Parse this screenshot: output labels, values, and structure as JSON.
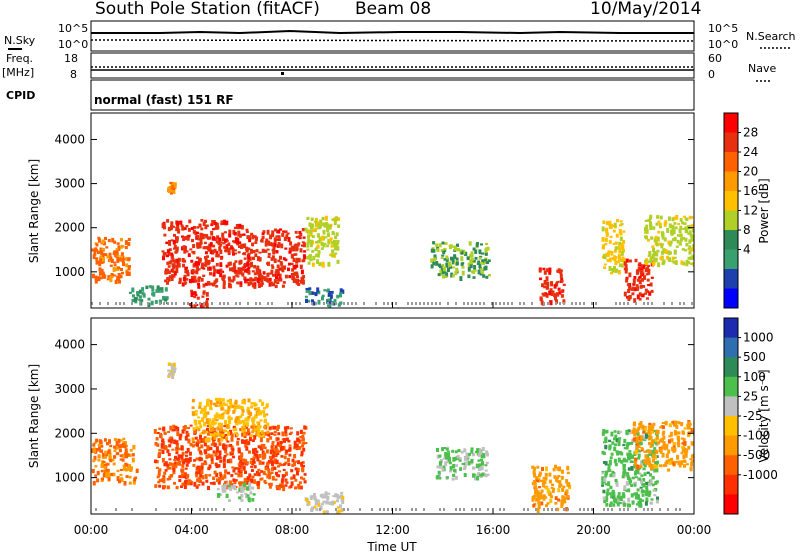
{
  "header": {
    "station": "South Pole Station (fitACF)",
    "beam": "Beam 08",
    "date": "10/May/2014"
  },
  "sky_panel": {
    "left_label": "N.Sky",
    "right_label": "N.Search",
    "left_ticks": [
      "10^5",
      "10^0"
    ],
    "right_ticks": [
      "10^5",
      "10^0"
    ]
  },
  "freq_panel": {
    "left_label_1": "Freq.",
    "left_label_2": "[MHz]",
    "right_label": "Nave",
    "left_ticks": [
      "18",
      "8"
    ],
    "right_ticks": [
      "60",
      "0"
    ]
  },
  "cpid_panel": {
    "label": "CPID",
    "program": "normal (fast) 151 RF"
  },
  "power_panel": {
    "ylabel": "Slant Range [km]",
    "yticks": [
      "4000",
      "3000",
      "2000",
      "1000"
    ],
    "colorbar_label": "Power [dB]",
    "colorbar_ticks": [
      "28",
      "24",
      "20",
      "16",
      "12",
      "8",
      "4"
    ],
    "colorbar_colors": [
      "#ff0000",
      "#e83010",
      "#ff6000",
      "#ff9a00",
      "#ffc000",
      "#b0d028",
      "#2e8b57",
      "#3aa070",
      "#1e3fae",
      "#0000ff"
    ]
  },
  "velocity_panel": {
    "ylabel": "Slant Range [km]",
    "yticks": [
      "4000",
      "3000",
      "2000",
      "1000"
    ],
    "colorbar_label": "Velocity [m s⁻¹]",
    "colorbar_ticks": [
      "1000",
      "500",
      "100",
      "25",
      "-25",
      "-100",
      "-500",
      "-1000"
    ],
    "colorbar_colors": [
      "#1c2bb0",
      "#2f6fb0",
      "#2e8b57",
      "#4cbf4c",
      "#c0c0c0",
      "#ffc000",
      "#ff9a00",
      "#ff6000",
      "#ff3000",
      "#ff0000"
    ]
  },
  "xaxis": {
    "label": "Time UT",
    "ticks": [
      "00:00",
      "04:00",
      "08:00",
      "12:00",
      "16:00",
      "20:00",
      "00:00"
    ]
  },
  "chart_data": [
    {
      "type": "heatmap",
      "title": "South Pole Station (fitACF) Beam 08 10/May/2014",
      "quantity": "Power [dB]",
      "xlabel": "Time UT",
      "ylabel": "Slant Range [km]",
      "xlim_hours": [
        0,
        24
      ],
      "ylim_km": [
        180,
        4600
      ],
      "zlim": [
        0,
        30
      ],
      "grid": false,
      "patches": [
        {
          "t0": 0.0,
          "t1": 1.5,
          "r0": 800,
          "r1": 1800,
          "z": 22
        },
        {
          "t0": 1.5,
          "t1": 3.0,
          "r0": 300,
          "r1": 700,
          "z": 8
        },
        {
          "t0": 2.8,
          "t1": 6.0,
          "r0": 700,
          "r1": 2200,
          "z": 26
        },
        {
          "t0": 3.0,
          "t1": 3.3,
          "r0": 2850,
          "r1": 3050,
          "z": 20
        },
        {
          "t0": 3.9,
          "t1": 4.6,
          "r0": 180,
          "r1": 600,
          "z": 26
        },
        {
          "t0": 6.0,
          "t1": 8.5,
          "r0": 700,
          "r1": 2000,
          "z": 26
        },
        {
          "t0": 8.5,
          "t1": 9.8,
          "r0": 1200,
          "r1": 2300,
          "z": 14
        },
        {
          "t0": 8.5,
          "t1": 10.0,
          "r0": 250,
          "r1": 650,
          "z": 6
        },
        {
          "t0": 13.5,
          "t1": 15.8,
          "r0": 900,
          "r1": 1700,
          "z": 12
        },
        {
          "t0": 17.8,
          "t1": 18.8,
          "r0": 300,
          "r1": 1100,
          "z": 26
        },
        {
          "t0": 20.3,
          "t1": 21.2,
          "r0": 1000,
          "r1": 2200,
          "z": 16
        },
        {
          "t0": 21.2,
          "t1": 22.3,
          "r0": 400,
          "r1": 1300,
          "z": 26
        },
        {
          "t0": 22.0,
          "t1": 24.0,
          "r0": 1200,
          "r1": 2300,
          "z": 14
        }
      ]
    },
    {
      "type": "heatmap",
      "title": "South Pole Station (fitACF) Beam 08 10/May/2014",
      "quantity": "Velocity [m s-1]",
      "xlabel": "Time UT",
      "ylabel": "Slant Range [km]",
      "xlim_hours": [
        0,
        24
      ],
      "ylim_km": [
        180,
        4600
      ],
      "zlim": [
        -1000,
        1000
      ],
      "grid": false,
      "patches": [
        {
          "t0": 0.0,
          "t1": 1.8,
          "r0": 900,
          "r1": 1900,
          "z": -400
        },
        {
          "t0": 2.5,
          "t1": 8.5,
          "r0": 800,
          "r1": 2200,
          "z": -600
        },
        {
          "t0": 3.0,
          "t1": 3.3,
          "r0": 3300,
          "r1": 3600,
          "z": 10
        },
        {
          "t0": 4.0,
          "t1": 7.0,
          "r0": 1900,
          "r1": 2800,
          "z": -150
        },
        {
          "t0": 5.0,
          "t1": 6.5,
          "r0": 500,
          "r1": 900,
          "z": 150
        },
        {
          "t0": 8.5,
          "t1": 10.0,
          "r0": 250,
          "r1": 700,
          "z": 80
        },
        {
          "t0": 13.7,
          "t1": 15.8,
          "r0": 1000,
          "r1": 1700,
          "z": 200
        },
        {
          "t0": 17.5,
          "t1": 19.0,
          "r0": 300,
          "r1": 1300,
          "z": -300
        },
        {
          "t0": 20.3,
          "t1": 22.5,
          "r0": 400,
          "r1": 2100,
          "z": 300
        },
        {
          "t0": 21.5,
          "t1": 24.0,
          "r0": 1200,
          "r1": 2300,
          "z": -300
        }
      ]
    }
  ]
}
